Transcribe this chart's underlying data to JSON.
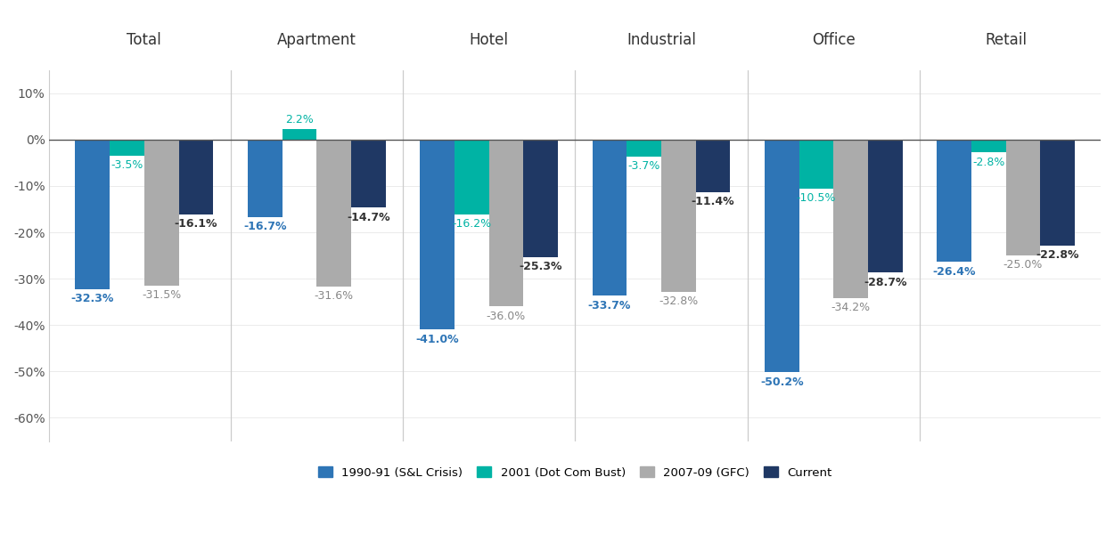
{
  "categories": [
    "Total",
    "Apartment",
    "Hotel",
    "Industrial",
    "Office",
    "Retail"
  ],
  "series": {
    "1990-91 (S&L Crisis)": [
      -32.3,
      -16.7,
      -41.0,
      -33.7,
      -50.2,
      -26.4
    ],
    "2001 (Dot Com Bust)": [
      -3.5,
      2.2,
      -16.2,
      -3.7,
      -10.5,
      -2.8
    ],
    "2007-09 (GFC)": [
      -31.5,
      -31.6,
      -36.0,
      -32.8,
      -34.2,
      -25.0
    ],
    "Current": [
      -16.1,
      -14.7,
      -25.3,
      -11.4,
      -28.7,
      -22.8
    ]
  },
  "colors": {
    "1990-91 (S&L Crisis)": "#2E75B6",
    "2001 (Dot Com Bust)": "#00B3A4",
    "2007-09 (GFC)": "#ABABAB",
    "Current": "#1F3864"
  },
  "bar_width": 0.2,
  "ylim": [
    -65,
    15
  ],
  "yticks": [
    10,
    0,
    -10,
    -20,
    -30,
    -40,
    -50,
    -60
  ],
  "ytick_labels": [
    "10%",
    "0%",
    "-10%",
    "-20%",
    "-30%",
    "-40%",
    "-50%",
    "-60%"
  ],
  "label_fontsize": 9.0,
  "category_fontsize": 12,
  "legend_fontsize": 9.5,
  "background_color": "#FFFFFF",
  "divider_color": "#CCCCCC",
  "zero_line_color": "#555555",
  "text_color_sl": "#2E75B6",
  "text_color_dot": "#00B3A4",
  "text_color_gfc": "#888888",
  "text_color_cur": "#333333"
}
